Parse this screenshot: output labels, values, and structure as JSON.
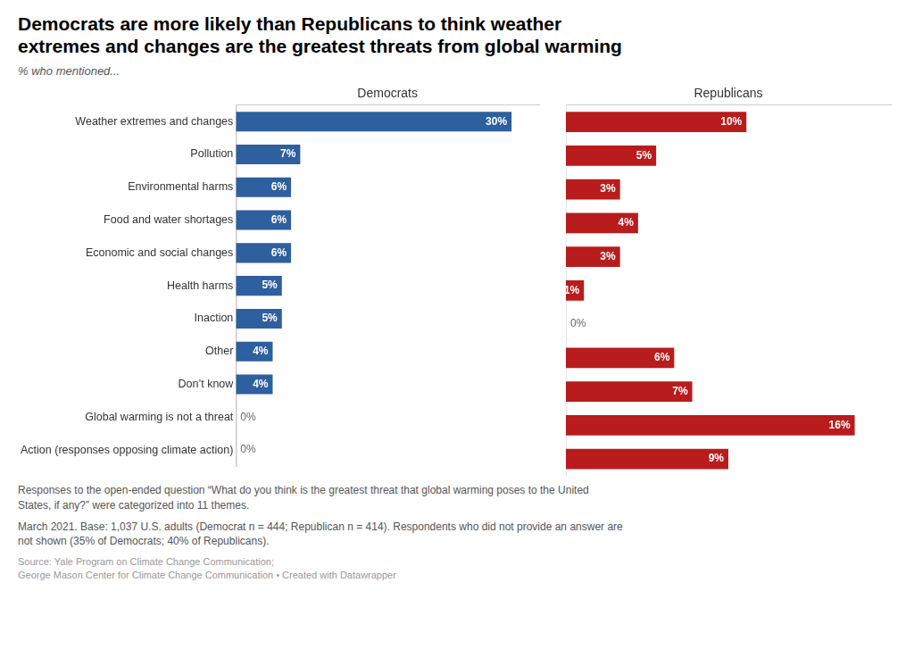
{
  "chart_data": [
    {
      "type": "bar",
      "orientation": "horizontal",
      "title": "Democrats are more likely than Republicans to think weather\nextremes and changes are the greatest threats from global warming",
      "subtitle": "% who mentioned...",
      "annotations": [
        "Responses to the open-ended question “What do you think is the greatest threat that global warming poses to the United\nStates, if any?” were categorized into 11 themes.",
        "March 2021. Base: 1,037 U.S. adults (Democrat n = 444; Republican n = 414). Respondents who did not provide an answer are\nnot shown (35% of Democrats; 40% of Republicans).",
        "Source: Yale Program on Climate Change Communication;\nGeorge Mason Center for Climate Change Communication • Created with Datawrapper"
      ],
      "x_label": "Democrats",
      "categories": [
        "Weather extremes and changes",
        "Pollution",
        "Environmental harms",
        "Food and water shortages",
        "Economic and social changes",
        "Health harms",
        "Inaction",
        "Other",
        "Don’t know",
        "Global warming is not a threat",
        "Action (responses opposing climate action)"
      ],
      "values": [
        30,
        7,
        6,
        6,
        6,
        5,
        5,
        4,
        4,
        0,
        0
      ],
      "value_labels": [
        "30%",
        "7%",
        "6%",
        "6%",
        "6%",
        "5%",
        "5%",
        "4%",
        "4%",
        "0%",
        "0%"
      ],
      "color": "#2E5F9E",
      "xlim": [
        0,
        33
      ],
      "grid": false,
      "data_labels": true,
      "tick_labels": "y"
    },
    {
      "type": "bar",
      "orientation": "horizontal",
      "x_label": "Republicans",
      "categories": [
        "Weather extremes and changes",
        "Pollution",
        "Environmental harms",
        "Food and water shortages",
        "Economic and social changes",
        "Health harms",
        "Inaction",
        "Other",
        "Don’t know",
        "Global warming is not a threat",
        "Action (responses opposing climate action)"
      ],
      "values": [
        10,
        5,
        3,
        4,
        3,
        1,
        0,
        6,
        7,
        16,
        9
      ],
      "value_labels": [
        "10%",
        "5%",
        "3%",
        "4%",
        "3%",
        "1%",
        "0%",
        "6%",
        "7%",
        "16%",
        "9%"
      ],
      "color": "#B81C1C",
      "xlim": [
        0,
        18
      ],
      "grid": false,
      "data_labels": true,
      "tick_labels": false
    }
  ]
}
